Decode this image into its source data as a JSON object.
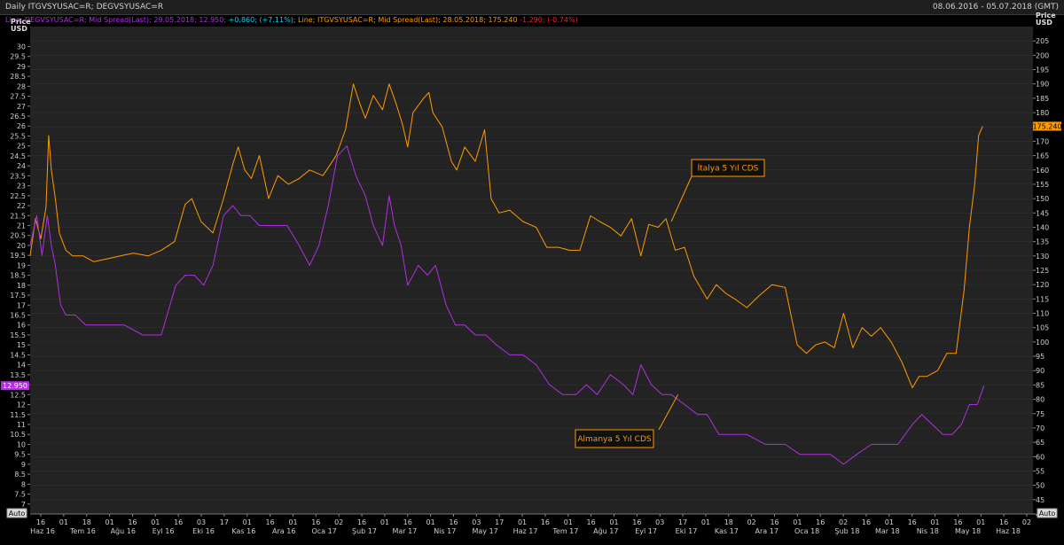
{
  "window": {
    "title": "Daily ITGVSYUSAC=R; DEGVSYUSAC=R",
    "date_range": "08.06.2016 - 05.07.2018 (GMT)",
    "auto_left": "Auto",
    "auto_right": "Auto"
  },
  "legend": {
    "de_name": "Line; DEGVSYUSAC=R; Mid Spread(Last); 29.05.2018; 12.950;",
    "de_change": " +0.860; (+7.11%);",
    "it_name": " Line; ITGVSYUSAC=R; Mid Spread(Last); 28.05.2018; 175.240",
    "it_change": " -1.290; (-0.74%)"
  },
  "colors": {
    "italy": "#ff9a00",
    "germany": "#b030e0",
    "de_change": "#00d8ff",
    "it_change": "#ff2020",
    "background": "#232323",
    "grid": "#303030"
  },
  "chart_data": {
    "type": "line",
    "left_axis": {
      "label_top": "Price",
      "label_unit": "USD",
      "ylim": [
        6.5,
        31
      ],
      "tick_step": 0.5,
      "last_value_tag": "12.950"
    },
    "right_axis": {
      "label_top": "Price",
      "label_unit": "USD",
      "ylim": [
        40,
        210
      ],
      "tick_step": 5,
      "last_value_tag": "175.240"
    },
    "x_ticks": {
      "days": [
        "16",
        "01",
        "18",
        "01",
        "16",
        "01",
        "16",
        "03",
        "17",
        "01",
        "16",
        "01",
        "16",
        "02",
        "16",
        "01",
        "16",
        "01",
        "16",
        "03",
        "17",
        "01",
        "16",
        "01",
        "16",
        "01",
        "16",
        "03",
        "17",
        "01",
        "18",
        "02",
        "16",
        "01",
        "16",
        "02",
        "16",
        "01",
        "16",
        "01",
        "16",
        "01",
        "16",
        "02"
      ],
      "months": [
        "Haz 16",
        "Tem 16",
        "Ağu 16",
        "Eyl 16",
        "Eki 16",
        "Kas 16",
        "Ara 16",
        "Oca 17",
        "Şub 17",
        "Mar 17",
        "Nis 17",
        "May 17",
        "Haz 17",
        "Tem 17",
        "Ağu 17",
        "Eyl 17",
        "Eki 17",
        "Kas 17",
        "Ara 17",
        "Oca 18",
        "Şub 18",
        "Mar 18",
        "Nis 18",
        "May 18",
        "Haz 18"
      ]
    },
    "series": [
      {
        "name": "İtalya 5 Yıl CDS",
        "axis": "right",
        "x": [
          "2016-06-08",
          "2016-06-12",
          "2016-06-16",
          "2016-06-20",
          "2016-06-22",
          "2016-06-24",
          "2016-06-27",
          "2016-06-30",
          "2016-07-05",
          "2016-07-10",
          "2016-07-18",
          "2016-07-26",
          "2016-08-05",
          "2016-08-15",
          "2016-08-25",
          "2016-09-05",
          "2016-09-15",
          "2016-09-25",
          "2016-10-03",
          "2016-10-08",
          "2016-10-15",
          "2016-10-24",
          "2016-11-01",
          "2016-11-08",
          "2016-11-12",
          "2016-11-17",
          "2016-11-22",
          "2016-11-28",
          "2016-12-05",
          "2016-12-12",
          "2016-12-20",
          "2016-12-28",
          "2017-01-05",
          "2017-01-15",
          "2017-01-25",
          "2017-02-01",
          "2017-02-07",
          "2017-02-12",
          "2017-02-16",
          "2017-02-22",
          "2017-03-01",
          "2017-03-06",
          "2017-03-12",
          "2017-03-16",
          "2017-03-20",
          "2017-03-24",
          "2017-04-01",
          "2017-04-05",
          "2017-04-08",
          "2017-04-15",
          "2017-04-22",
          "2017-04-26",
          "2017-05-02",
          "2017-05-10",
          "2017-05-17",
          "2017-05-22",
          "2017-05-28",
          "2017-06-05",
          "2017-06-15",
          "2017-06-25",
          "2017-07-03",
          "2017-07-12",
          "2017-07-20",
          "2017-07-28",
          "2017-08-05",
          "2017-08-12",
          "2017-08-20",
          "2017-08-28",
          "2017-09-05",
          "2017-09-12",
          "2017-09-18",
          "2017-09-25",
          "2017-10-01",
          "2017-10-08",
          "2017-10-15",
          "2017-10-22",
          "2017-11-01",
          "2017-11-08",
          "2017-11-15",
          "2017-11-22",
          "2017-12-01",
          "2017-12-10",
          "2017-12-20",
          "2017-12-30",
          "2018-01-08",
          "2018-01-15",
          "2018-01-22",
          "2018-01-29",
          "2018-02-05",
          "2018-02-12",
          "2018-02-19",
          "2018-02-26",
          "2018-03-05",
          "2018-03-12",
          "2018-03-20",
          "2018-03-28",
          "2018-04-05",
          "2018-04-10",
          "2018-04-16",
          "2018-04-24",
          "2018-05-01",
          "2018-05-08",
          "2018-05-14",
          "2018-05-18",
          "2018-05-22",
          "2018-05-25",
          "2018-05-28"
        ],
        "values": [
          130,
          143,
          136,
          147,
          172,
          160,
          150,
          138,
          132,
          130,
          130,
          128,
          129,
          130,
          131,
          130,
          132,
          135,
          148,
          150,
          142,
          138,
          150,
          162,
          168,
          160,
          157,
          165,
          150,
          158,
          155,
          157,
          160,
          158,
          165,
          174,
          190,
          183,
          178,
          186,
          181,
          190,
          182,
          176,
          168,
          180,
          185,
          187,
          180,
          175,
          163,
          160,
          168,
          163,
          174,
          150,
          145,
          146,
          142,
          140,
          133,
          133,
          132,
          132,
          144,
          142,
          140,
          137,
          143,
          130,
          141,
          140,
          143,
          132,
          133,
          123,
          115,
          120,
          117,
          115,
          112,
          116,
          120,
          119,
          99,
          96,
          99,
          100,
          98,
          110,
          98,
          105,
          102,
          105,
          100,
          93,
          84,
          88,
          88,
          90,
          96,
          96,
          118,
          140,
          155,
          172,
          175.24
        ]
      },
      {
        "name": "Almanya 5 Yıl CDS",
        "axis": "left",
        "x": [
          "2016-06-08",
          "2016-06-13",
          "2016-06-17",
          "2016-06-21",
          "2016-06-24",
          "2016-06-27",
          "2016-07-01",
          "2016-07-05",
          "2016-07-12",
          "2016-07-20",
          "2016-08-01",
          "2016-08-10",
          "2016-08-18",
          "2016-09-01",
          "2016-09-15",
          "2016-09-26",
          "2016-10-03",
          "2016-10-10",
          "2016-10-17",
          "2016-10-24",
          "2016-11-01",
          "2016-11-08",
          "2016-11-14",
          "2016-11-21",
          "2016-11-28",
          "2016-12-05",
          "2016-12-12",
          "2016-12-19",
          "2016-12-28",
          "2017-01-05",
          "2017-01-12",
          "2017-01-19",
          "2017-01-26",
          "2017-02-02",
          "2017-02-09",
          "2017-02-16",
          "2017-02-22",
          "2017-03-01",
          "2017-03-06",
          "2017-03-10",
          "2017-03-15",
          "2017-03-20",
          "2017-03-28",
          "2017-04-04",
          "2017-04-10",
          "2017-04-18",
          "2017-04-25",
          "2017-05-02",
          "2017-05-10",
          "2017-05-18",
          "2017-05-26",
          "2017-06-05",
          "2017-06-15",
          "2017-06-25",
          "2017-07-05",
          "2017-07-15",
          "2017-07-25",
          "2017-08-02",
          "2017-08-10",
          "2017-08-20",
          "2017-08-30",
          "2017-09-06",
          "2017-09-12",
          "2017-09-20",
          "2017-09-28",
          "2017-10-05",
          "2017-10-15",
          "2017-10-25",
          "2017-11-01",
          "2017-11-10",
          "2017-11-20",
          "2017-12-01",
          "2017-12-15",
          "2017-12-30",
          "2018-01-10",
          "2018-01-22",
          "2018-02-02",
          "2018-02-12",
          "2018-02-22",
          "2018-03-05",
          "2018-03-15",
          "2018-03-25",
          "2018-04-05",
          "2018-04-12",
          "2018-04-20",
          "2018-04-28",
          "2018-05-05",
          "2018-05-12",
          "2018-05-18",
          "2018-05-24",
          "2018-05-29"
        ],
        "values": [
          20,
          21.5,
          19.5,
          21.5,
          20,
          19,
          17,
          16.5,
          16.5,
          16,
          16,
          16,
          16,
          15.5,
          15.5,
          18,
          18.5,
          18.5,
          18,
          19,
          21.5,
          22,
          21.5,
          21.5,
          21,
          21,
          21,
          21,
          20,
          19,
          20,
          22,
          24.5,
          25,
          23.5,
          22.5,
          21,
          20,
          22.5,
          21,
          20,
          18,
          19,
          18.5,
          19,
          17,
          16,
          16,
          15.5,
          15.5,
          15,
          14.5,
          14.5,
          14,
          13,
          12.5,
          12.5,
          13,
          12.5,
          13.5,
          13,
          12.5,
          14,
          13,
          12.5,
          12.5,
          12,
          11.5,
          11.5,
          10.5,
          10.5,
          10.5,
          10,
          10,
          9.5,
          9.5,
          9.5,
          9,
          9.5,
          10,
          10,
          10,
          11,
          11.5,
          11,
          10.5,
          10.5,
          11,
          12,
          12,
          12.95
        ]
      }
    ],
    "annotations": [
      {
        "text": "İtalya 5 Yıl CDS",
        "target_date": "2017-10-05",
        "target_value": 142,
        "axis": "right"
      },
      {
        "text": "Almanya 5 Yıl CDS",
        "target_date": "2017-10-10",
        "target_value": 12.5,
        "axis": "left"
      }
    ]
  }
}
